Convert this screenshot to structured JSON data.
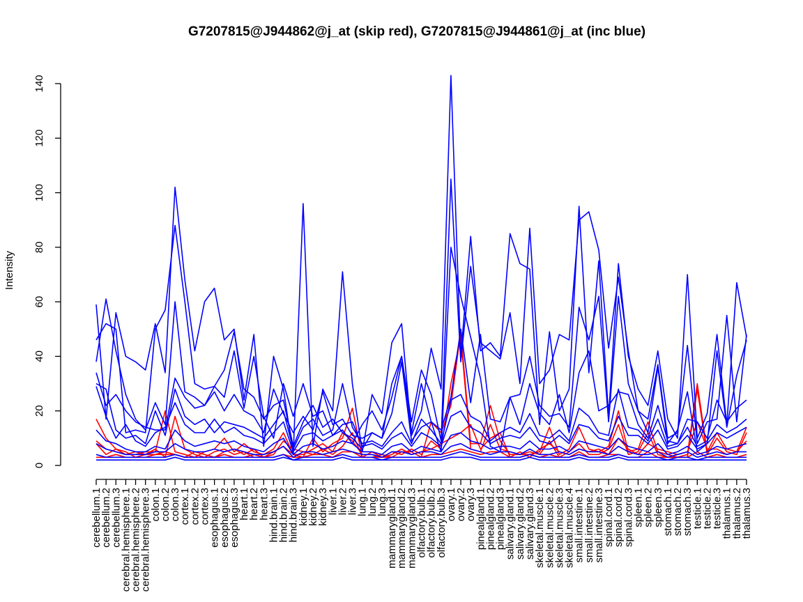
{
  "chart_data": {
    "type": "line",
    "title": "G7207815@J944862@j_at (skip red), G7207815@J944861@j_at (inc blue)",
    "xlabel": "",
    "ylabel": "Intensity",
    "ylim": [
      0,
      140
    ],
    "yticks": [
      0,
      20,
      40,
      60,
      80,
      100,
      120,
      140
    ],
    "grid": false,
    "legend": "none",
    "colors": {
      "skip": "#ff0000",
      "inc": "#0000ff"
    },
    "categories": [
      "cerebellum.1",
      "cerebellum.2",
      "cerebellum.3",
      "cerebral.hemisphere.1",
      "cerebral.hemisphere.2",
      "cerebral.hemisphere.3",
      "colon.1",
      "colon.2",
      "colon.3",
      "cortex.1",
      "cortex.2",
      "cortex.3",
      "esophagus.1",
      "esophagus.2",
      "esophagus.3",
      "heart.1",
      "heart.2",
      "heart.3",
      "hind.brain.1",
      "hind.brain.2",
      "hind.brain.3",
      "kidney.1",
      "kidney.2",
      "kidney.3",
      "liver.1",
      "liver.2",
      "liver.3",
      "lung.1",
      "lung.2",
      "lung.3",
      "mammarygland.1",
      "mammarygland.2",
      "mammarygland.3",
      "olfactory.bulb.1",
      "olfactory.bulb.2",
      "olfactory.bulb.3",
      "ovary.1",
      "ovary.2",
      "ovary.3",
      "pinealgland.1",
      "pinealgland.2",
      "pinealgland.3",
      "salivary.gland.1",
      "salivary.gland.2",
      "salivary.gland.3",
      "skeletal.muscle.1",
      "skeletal.muscle.2",
      "skeletal.muscle.3",
      "skeletal.muscle.4",
      "small.intestine.1",
      "small.intestine.2",
      "small.intestine.3",
      "spinal.cord.1",
      "spinal.cord.2",
      "spinal.cord.3",
      "spleen.1",
      "spleen.2",
      "spleen.3",
      "stomach.1",
      "stomach.2",
      "stomach.3",
      "testicle.1",
      "testicle.2",
      "testicle.3",
      "thalamus.1",
      "thalamus.2",
      "thalamus.3"
    ],
    "series": [
      {
        "color": "#ff0000",
        "values": [
          17,
          10,
          6,
          4,
          4,
          5,
          5,
          20,
          5,
          4,
          3,
          5,
          6,
          10,
          5,
          8,
          5,
          4,
          6,
          12,
          4,
          3,
          10,
          5,
          8,
          10,
          21,
          3,
          3,
          4,
          3,
          5,
          5,
          3,
          16,
          12,
          22,
          49,
          8,
          8,
          22,
          9,
          4,
          4,
          4,
          5,
          14,
          4,
          6,
          14,
          6,
          5,
          7,
          20,
          5,
          6,
          16,
          5,
          4,
          3,
          4,
          30,
          5,
          12,
          6,
          5,
          14
        ]
      },
      {
        "color": "#ff0000",
        "values": [
          9,
          6,
          5,
          4,
          5,
          4,
          6,
          3,
          18,
          6,
          4,
          3,
          5,
          6,
          4,
          5,
          3,
          3,
          5,
          7,
          4,
          4,
          6,
          8,
          5,
          12,
          9,
          4,
          4,
          3,
          5,
          4,
          6,
          4,
          9,
          6,
          30,
          47,
          6,
          5,
          15,
          6,
          5,
          4,
          5,
          4,
          9,
          3,
          5,
          8,
          4,
          4,
          6,
          15,
          4,
          5,
          12,
          4,
          3,
          3,
          3,
          28,
          4,
          10,
          5,
          4,
          12
        ]
      },
      {
        "color": "#ff0000",
        "values": [
          8,
          4,
          6,
          5,
          3,
          4,
          4,
          5,
          4,
          3,
          5,
          4,
          3,
          5,
          6,
          4,
          6,
          3,
          4,
          9,
          6,
          5,
          4,
          6,
          4,
          7,
          12,
          3,
          5,
          3,
          4,
          6,
          4,
          5,
          6,
          8,
          10,
          12,
          15,
          6,
          10,
          12,
          3,
          5,
          3,
          6,
          8,
          5,
          4,
          6,
          5,
          6,
          4,
          10,
          6,
          4,
          8,
          6,
          5,
          4,
          5,
          16,
          6,
          6,
          4,
          5,
          9
        ]
      },
      {
        "color": "#ff0000",
        "values": [
          3,
          3,
          4,
          3,
          3,
          3,
          4,
          4,
          4,
          3,
          3,
          3,
          3,
          4,
          3,
          3,
          4,
          3,
          3,
          4,
          3,
          3,
          4,
          4,
          3,
          5,
          5,
          3,
          3,
          3,
          3,
          3,
          3,
          3,
          4,
          4,
          5,
          6,
          5,
          4,
          5,
          5,
          3,
          3,
          4,
          3,
          4,
          3,
          3,
          5,
          3,
          3,
          4,
          4,
          3,
          3,
          5,
          3,
          3,
          3,
          3,
          5,
          3,
          4,
          3,
          3,
          4
        ]
      },
      {
        "color": "#0000ff",
        "values": [
          59,
          17,
          56,
          40,
          38,
          35,
          52,
          34,
          102,
          68,
          42,
          60,
          65,
          46,
          50,
          24,
          48,
          7,
          40,
          28,
          4,
          96,
          7,
          28,
          20,
          71,
          30,
          5,
          26,
          19,
          45,
          52,
          11,
          20,
          43,
          28,
          143,
          40,
          84,
          42,
          45,
          40,
          85,
          74,
          72,
          15,
          49,
          20,
          28,
          95,
          34,
          75,
          18,
          74,
          40,
          28,
          22,
          42,
          17,
          10,
          70,
          10,
          19,
          48,
          15,
          67,
          47
        ]
      },
      {
        "color": "#0000ff",
        "values": [
          46,
          52,
          50,
          12,
          13,
          12,
          50,
          57,
          88,
          60,
          30,
          28,
          29,
          25,
          42,
          21,
          40,
          18,
          10,
          30,
          18,
          30,
          18,
          20,
          11,
          13,
          8,
          15,
          20,
          13,
          25,
          40,
          16,
          35,
          26,
          9,
          105,
          38,
          73,
          45,
          42,
          39,
          56,
          30,
          87,
          30,
          35,
          48,
          46,
          90,
          93,
          79,
          43,
          69,
          42,
          20,
          17,
          37,
          10,
          12,
          44,
          8,
          16,
          17,
          55,
          16,
          48
        ]
      },
      {
        "color": "#0000ff",
        "values": [
          38,
          61,
          42,
          26,
          17,
          13,
          23,
          15,
          60,
          27,
          25,
          22,
          29,
          35,
          49,
          28,
          25,
          17,
          22,
          24,
          7,
          16,
          22,
          14,
          17,
          12,
          10,
          6,
          12,
          10,
          30,
          40,
          12,
          30,
          16,
          5,
          80,
          62,
          47,
          32,
          7,
          5,
          25,
          26,
          40,
          22,
          18,
          19,
          14,
          58,
          46,
          62,
          16,
          62,
          30,
          20,
          12,
          36,
          8,
          13,
          27,
          5,
          8,
          42,
          14,
          33,
          46
        ]
      },
      {
        "color": "#0000ff",
        "values": [
          34,
          22,
          26,
          20,
          16,
          14,
          13,
          13,
          32,
          25,
          21,
          22,
          27,
          20,
          26,
          20,
          18,
          12,
          28,
          19,
          12,
          18,
          13,
          27,
          15,
          17,
          11,
          10,
          12,
          10,
          19,
          38,
          9,
          14,
          16,
          13,
          25,
          50,
          23,
          48,
          17,
          16,
          25,
          15,
          30,
          19,
          15,
          26,
          12,
          34,
          42,
          20,
          22,
          27,
          26,
          15,
          10,
          22,
          9,
          8,
          17,
          16,
          10,
          24,
          16,
          21,
          24
        ]
      },
      {
        "color": "#0000ff",
        "values": [
          30,
          28,
          13,
          10,
          11,
          8,
          20,
          11,
          28,
          18,
          15,
          17,
          12,
          16,
          15,
          14,
          12,
          10,
          15,
          20,
          6,
          14,
          17,
          11,
          13,
          30,
          14,
          8,
          9,
          7,
          12,
          16,
          8,
          17,
          13,
          8,
          24,
          26,
          18,
          16,
          9,
          12,
          14,
          12,
          19,
          11,
          10,
          13,
          9,
          21,
          18,
          12,
          11,
          28,
          14,
          13,
          9,
          17,
          7,
          8,
          14,
          7,
          9,
          15,
          12,
          14,
          17
        ]
      },
      {
        "color": "#0000ff",
        "values": [
          29,
          18,
          10,
          15,
          9,
          7,
          12,
          14,
          23,
          15,
          12,
          12,
          17,
          12,
          14,
          11,
          10,
          8,
          12,
          16,
          5,
          11,
          12,
          9,
          11,
          15,
          16,
          7,
          8,
          6,
          10,
          12,
          7,
          12,
          10,
          7,
          18,
          20,
          14,
          12,
          8,
          10,
          11,
          10,
          14,
          9,
          8,
          11,
          8,
          15,
          14,
          10,
          9,
          18,
          11,
          11,
          8,
          13,
          6,
          7,
          11,
          6,
          8,
          12,
          10,
          12,
          14
        ]
      },
      {
        "color": "#0000ff",
        "values": [
          13,
          9,
          8,
          6,
          5,
          5,
          7,
          6,
          13,
          9,
          7,
          8,
          9,
          8,
          9,
          7,
          6,
          5,
          8,
          10,
          4,
          7,
          8,
          6,
          7,
          9,
          8,
          5,
          5,
          4,
          7,
          8,
          5,
          7,
          6,
          5,
          11,
          12,
          9,
          8,
          6,
          7,
          7,
          6,
          9,
          6,
          6,
          7,
          5,
          9,
          8,
          7,
          6,
          10,
          7,
          6,
          5,
          8,
          4,
          5,
          7,
          4,
          5,
          7,
          6,
          7,
          8
        ]
      },
      {
        "color": "#0000ff",
        "values": [
          8,
          6,
          5,
          4,
          4,
          4,
          5,
          5,
          8,
          6,
          5,
          5,
          6,
          5,
          6,
          5,
          4,
          4,
          5,
          7,
          3,
          5,
          5,
          4,
          5,
          6,
          5,
          4,
          4,
          3,
          5,
          5,
          4,
          5,
          5,
          4,
          7,
          8,
          6,
          5,
          4,
          5,
          5,
          4,
          6,
          4,
          4,
          5,
          4,
          6,
          5,
          5,
          4,
          7,
          5,
          4,
          4,
          5,
          3,
          4,
          5,
          3,
          4,
          5,
          4,
          5,
          5
        ]
      },
      {
        "color": "#0000ff",
        "values": [
          4,
          3,
          3,
          3,
          3,
          3,
          3,
          3,
          4,
          3,
          3,
          3,
          3,
          3,
          3,
          3,
          3,
          3,
          3,
          4,
          2,
          3,
          3,
          3,
          3,
          4,
          3,
          3,
          3,
          2,
          3,
          3,
          3,
          3,
          3,
          3,
          4,
          5,
          4,
          3,
          3,
          3,
          3,
          3,
          4,
          3,
          3,
          3,
          3,
          4,
          3,
          3,
          3,
          4,
          3,
          3,
          3,
          3,
          2,
          3,
          3,
          2,
          3,
          3,
          3,
          3,
          3
        ]
      },
      {
        "color": "#0000ff",
        "values": [
          2,
          2,
          2,
          2,
          2,
          2,
          2,
          2,
          3,
          2,
          2,
          2,
          2,
          2,
          2,
          2,
          2,
          2,
          2,
          3,
          2,
          2,
          2,
          2,
          2,
          3,
          2,
          2,
          2,
          2,
          2,
          2,
          2,
          2,
          2,
          2,
          3,
          3,
          3,
          2,
          2,
          2,
          2,
          2,
          3,
          2,
          2,
          2,
          2,
          3,
          2,
          2,
          2,
          3,
          2,
          2,
          2,
          2,
          2,
          2,
          2,
          2,
          2,
          2,
          2,
          2,
          2
        ]
      }
    ]
  }
}
